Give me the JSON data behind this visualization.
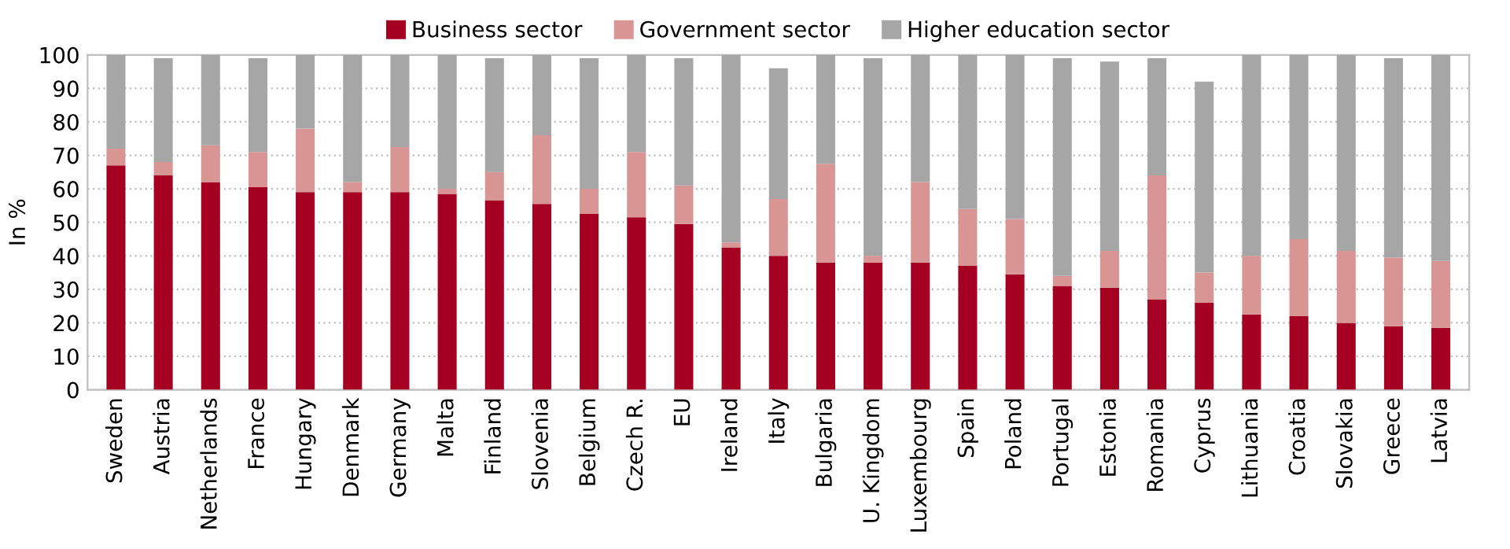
{
  "chart_data": {
    "type": "bar",
    "stacked": true,
    "ylabel": "In %",
    "categories": [
      "Sweden",
      "Austria",
      "Netherlands",
      "France",
      "Hungary",
      "Denmark",
      "Germany",
      "Malta",
      "Finland",
      "Slovenia",
      "Belgium",
      "Czech R.",
      "EU",
      "Ireland",
      "Italy",
      "Bulgaria",
      "U. Kingdom",
      "Luxembourg",
      "Spain",
      "Poland",
      "Portugal",
      "Estonia",
      "Romania",
      "Cyprus",
      "Lithuania",
      "Croatia",
      "Slovakia",
      "Greece",
      "Latvia"
    ],
    "series": [
      {
        "name": "Business sector",
        "color": "#a50021",
        "values": [
          67,
          64,
          62,
          60.5,
          59,
          59,
          59,
          58.5,
          56.5,
          55.5,
          52.5,
          51.5,
          49.5,
          42.5,
          40,
          38,
          38,
          38,
          37,
          34.5,
          31,
          30.5,
          27,
          26,
          22.5,
          22,
          20,
          19,
          18.5
        ]
      },
      {
        "name": "Government sector",
        "color": "#d99594",
        "values": [
          5,
          4,
          11,
          10.5,
          19,
          3,
          13.5,
          1.5,
          8.5,
          20.5,
          7.5,
          19.5,
          11.5,
          1.5,
          17,
          29.5,
          2,
          24,
          17,
          16.5,
          3,
          11,
          37,
          9,
          17.5,
          23,
          21.5,
          20.5,
          20
        ]
      },
      {
        "name": "Higher education sector",
        "color": "#a6a6a6",
        "values": [
          28,
          31,
          27,
          28,
          22,
          38,
          27.5,
          40,
          34,
          24,
          39,
          29,
          38,
          56,
          39,
          32.5,
          59,
          38,
          46,
          49,
          65,
          56.5,
          35,
          57,
          60,
          55,
          58.5,
          59.5,
          61.5
        ]
      }
    ],
    "ylim": [
      0,
      100
    ],
    "yticks": [
      0,
      10,
      20,
      30,
      40,
      50,
      60,
      70,
      80,
      90,
      100
    ],
    "grid": "y",
    "legend": "top"
  }
}
